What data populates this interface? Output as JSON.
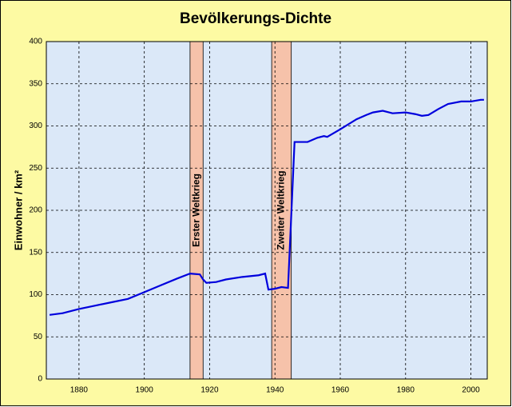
{
  "chart_data": {
    "type": "line",
    "title": "Bevölkerungs-Dichte",
    "y_label": "Einwohner / km²",
    "x": [
      1871,
      1875,
      1880,
      1885,
      1890,
      1895,
      1900,
      1905,
      1910,
      1914,
      1917,
      1918,
      1919,
      1922,
      1925,
      1930,
      1935,
      1937,
      1938,
      1940,
      1942,
      1944,
      1946,
      1950,
      1953,
      1955,
      1956,
      1960,
      1965,
      1968,
      1970,
      1973,
      1976,
      1980,
      1983,
      1985,
      1987,
      1990,
      1993,
      1997,
      2000,
      2003,
      2004
    ],
    "series": [
      {
        "name": "Einwohner / km²",
        "color": "#0000dd",
        "values": [
          76,
          78,
          83,
          87,
          91,
          95,
          103,
          111,
          119,
          125,
          124,
          118,
          114,
          115,
          118,
          121,
          123,
          125,
          106,
          107,
          109,
          108,
          281,
          281,
          286,
          288,
          287,
          296,
          308,
          313,
          316,
          318,
          315,
          316,
          314,
          312,
          313,
          320,
          326,
          329,
          329,
          331,
          331
        ]
      }
    ],
    "bands": [
      {
        "label": "Erster Weltkrieg",
        "start": 1914,
        "end": 1918,
        "color": "#f6c2aa"
      },
      {
        "label": "Zweiter Weltkrieg",
        "start": 1939,
        "end": 1945,
        "color": "#f6c2aa"
      }
    ],
    "xlim": [
      1870,
      2005
    ],
    "xticks": [
      1880,
      1900,
      1920,
      1940,
      1960,
      1980,
      2000
    ],
    "ylim": [
      0,
      400
    ],
    "yticks": [
      0,
      50,
      100,
      150,
      200,
      250,
      300,
      350,
      400
    ],
    "grid": true
  }
}
